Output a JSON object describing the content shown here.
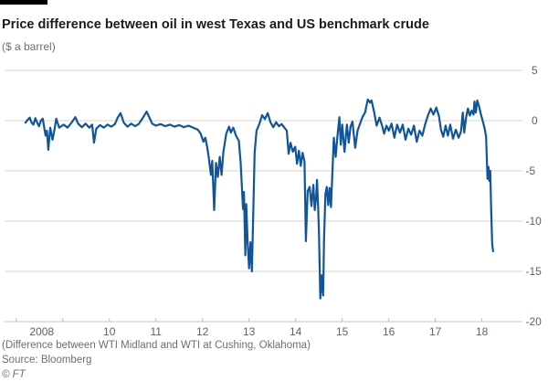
{
  "header": {
    "title": "Price difference between oil in west Texas and US benchmark crude",
    "subtitle": "($ a barrel)"
  },
  "footer": {
    "note": "(Difference between WTI Midland and WTI at Cushing, Oklahoma)",
    "source": "Source: Bloomberg",
    "copyright": "© FT"
  },
  "colors": {
    "line": "#10559B",
    "grid": "#d6d4cf",
    "axis": "#c2c0bb",
    "tick_label": "#66605c",
    "title_text": "#1b1b19",
    "top_rule": "#000000",
    "background": "#ffffff"
  },
  "chart_data": {
    "type": "line",
    "title": "Price difference between oil in west Texas and US benchmark crude",
    "subtitle": "($ a barrel)",
    "xlabel": "",
    "ylabel": "$ a barrel",
    "xlim": [
      2007.75,
      2018.87
    ],
    "ylim": [
      -20,
      5
    ],
    "grid": "horizontal",
    "legend": "none",
    "y_ticks": [
      5,
      0,
      -5,
      -10,
      -15,
      -20
    ],
    "x_ticks": [
      {
        "year": 2008,
        "label": "2008"
      },
      {
        "year": 2009,
        "label": ""
      },
      {
        "year": 2010,
        "label": "10"
      },
      {
        "year": 2011,
        "label": "11"
      },
      {
        "year": 2012,
        "label": "12"
      },
      {
        "year": 2013,
        "label": "13"
      },
      {
        "year": 2014,
        "label": "14"
      },
      {
        "year": 2015,
        "label": "15"
      },
      {
        "year": 2016,
        "label": "16"
      },
      {
        "year": 2017,
        "label": "17"
      },
      {
        "year": 2018,
        "label": "18"
      }
    ],
    "series": [
      {
        "name": "WTI Midland minus WTI Cushing spread",
        "points": [
          [
            2008.2,
            -0.2
          ],
          [
            2008.25,
            0.1
          ],
          [
            2008.29,
            0.3
          ],
          [
            2008.33,
            -0.2
          ],
          [
            2008.37,
            -0.4
          ],
          [
            2008.41,
            0.25
          ],
          [
            2008.45,
            -0.2
          ],
          [
            2008.49,
            -0.55
          ],
          [
            2008.53,
            0.0
          ],
          [
            2008.57,
            0.2
          ],
          [
            2008.63,
            -1.5
          ],
          [
            2008.66,
            -1.0
          ],
          [
            2008.69,
            -2.9
          ],
          [
            2008.73,
            -0.7
          ],
          [
            2008.78,
            -1.9
          ],
          [
            2008.82,
            -0.9
          ],
          [
            2008.86,
            0.2
          ],
          [
            2008.92,
            -0.7
          ],
          [
            2009.02,
            -0.4
          ],
          [
            2009.1,
            -0.7
          ],
          [
            2009.18,
            -0.25
          ],
          [
            2009.27,
            0.35
          ],
          [
            2009.33,
            -0.3
          ],
          [
            2009.41,
            -0.65
          ],
          [
            2009.49,
            -0.3
          ],
          [
            2009.57,
            -0.7
          ],
          [
            2009.63,
            -0.4
          ],
          [
            2009.67,
            -2.2
          ],
          [
            2009.72,
            -0.8
          ],
          [
            2009.8,
            -0.45
          ],
          [
            2009.88,
            -0.7
          ],
          [
            2009.96,
            -0.4
          ],
          [
            2010.04,
            -0.6
          ],
          [
            2010.12,
            -0.35
          ],
          [
            2010.18,
            0.3
          ],
          [
            2010.24,
            0.75
          ],
          [
            2010.31,
            -0.2
          ],
          [
            2010.39,
            -0.6
          ],
          [
            2010.47,
            -0.3
          ],
          [
            2010.55,
            -0.55
          ],
          [
            2010.63,
            -0.35
          ],
          [
            2010.71,
            0.2
          ],
          [
            2010.8,
            0.9
          ],
          [
            2010.86,
            0.3
          ],
          [
            2010.92,
            -0.3
          ],
          [
            2011.0,
            -0.5
          ],
          [
            2011.1,
            -0.35
          ],
          [
            2011.2,
            -0.55
          ],
          [
            2011.3,
            -0.4
          ],
          [
            2011.4,
            -0.6
          ],
          [
            2011.5,
            -0.45
          ],
          [
            2011.6,
            -0.65
          ],
          [
            2011.7,
            -0.5
          ],
          [
            2011.8,
            -0.7
          ],
          [
            2011.9,
            -0.9
          ],
          [
            2011.96,
            -1.3
          ],
          [
            2012.02,
            -2.1
          ],
          [
            2012.06,
            -1.7
          ],
          [
            2012.1,
            -2.6
          ],
          [
            2012.14,
            -3.8
          ],
          [
            2012.18,
            -5.4
          ],
          [
            2012.21,
            -4.0
          ],
          [
            2012.25,
            -8.9
          ],
          [
            2012.29,
            -4.2
          ],
          [
            2012.33,
            -5.6
          ],
          [
            2012.37,
            -3.6
          ],
          [
            2012.41,
            -5.4
          ],
          [
            2012.45,
            -3.1
          ],
          [
            2012.51,
            -1.3
          ],
          [
            2012.57,
            -0.6
          ],
          [
            2012.61,
            -1.2
          ],
          [
            2012.66,
            -0.7
          ],
          [
            2012.72,
            -1.5
          ],
          [
            2012.78,
            -2.0
          ],
          [
            2012.82,
            -4.2
          ],
          [
            2012.85,
            -6.9
          ],
          [
            2012.87,
            -8.8
          ],
          [
            2012.89,
            -7.1
          ],
          [
            2012.92,
            -13.4
          ],
          [
            2012.94,
            -8.3
          ],
          [
            2012.97,
            -12.2
          ],
          [
            2013.0,
            -14.7
          ],
          [
            2013.03,
            -12.1
          ],
          [
            2013.06,
            -15.0
          ],
          [
            2013.09,
            -9.2
          ],
          [
            2013.12,
            -3.2
          ],
          [
            2013.16,
            -1.0
          ],
          [
            2013.22,
            -0.35
          ],
          [
            2013.28,
            0.55
          ],
          [
            2013.34,
            0.15
          ],
          [
            2013.4,
            0.75
          ],
          [
            2013.46,
            -0.15
          ],
          [
            2013.52,
            -0.65
          ],
          [
            2013.58,
            -0.15
          ],
          [
            2013.64,
            -0.55
          ],
          [
            2013.7,
            -0.35
          ],
          [
            2013.76,
            -0.7
          ],
          [
            2013.81,
            -1.0
          ],
          [
            2013.85,
            -3.3
          ],
          [
            2013.89,
            -2.2
          ],
          [
            2013.94,
            -3.1
          ],
          [
            2013.99,
            -2.6
          ],
          [
            2014.03,
            -4.3
          ],
          [
            2014.07,
            -3.0
          ],
          [
            2014.11,
            -4.5
          ],
          [
            2014.15,
            -3.2
          ],
          [
            2014.19,
            -4.1
          ],
          [
            2014.22,
            -12.0
          ],
          [
            2014.26,
            -7.0
          ],
          [
            2014.3,
            -6.6
          ],
          [
            2014.34,
            -8.5
          ],
          [
            2014.38,
            -6.4
          ],
          [
            2014.41,
            -8.9
          ],
          [
            2014.44,
            -7.6
          ],
          [
            2014.46,
            -5.9
          ],
          [
            2014.48,
            -8.3
          ],
          [
            2014.5,
            -11.0
          ],
          [
            2014.53,
            -17.7
          ],
          [
            2014.56,
            -15.4
          ],
          [
            2014.59,
            -17.4
          ],
          [
            2014.61,
            -11.8
          ],
          [
            2014.64,
            -7.3
          ],
          [
            2014.67,
            -6.6
          ],
          [
            2014.7,
            -8.4
          ],
          [
            2014.73,
            -6.7
          ],
          [
            2014.76,
            -8.6
          ],
          [
            2014.82,
            -1.7
          ],
          [
            2014.86,
            -3.6
          ],
          [
            2014.9,
            -1.4
          ],
          [
            2014.94,
            0.35
          ],
          [
            2014.97,
            -2.4
          ],
          [
            2015.0,
            -0.4
          ],
          [
            2015.05,
            -3.1
          ],
          [
            2015.1,
            -0.4
          ],
          [
            2015.14,
            -2.2
          ],
          [
            2015.18,
            -0.6
          ],
          [
            2015.22,
            -0.1
          ],
          [
            2015.28,
            -2.7
          ],
          [
            2015.33,
            -1.0
          ],
          [
            2015.39,
            -0.2
          ],
          [
            2015.44,
            0.4
          ],
          [
            2015.49,
            0.8
          ],
          [
            2015.55,
            2.1
          ],
          [
            2015.6,
            1.8
          ],
          [
            2015.63,
            2.0
          ],
          [
            2015.68,
            1.0
          ],
          [
            2015.74,
            -0.5
          ],
          [
            2015.8,
            0.3
          ],
          [
            2015.85,
            -0.4
          ],
          [
            2015.9,
            -1.3
          ],
          [
            2015.95,
            -0.5
          ],
          [
            2016.0,
            -1.0
          ],
          [
            2016.06,
            -0.3
          ],
          [
            2016.12,
            -1.7
          ],
          [
            2016.18,
            -0.4
          ],
          [
            2016.24,
            -1.2
          ],
          [
            2016.3,
            -0.4
          ],
          [
            2016.36,
            -1.9
          ],
          [
            2016.42,
            -0.8
          ],
          [
            2016.48,
            -1.4
          ],
          [
            2016.54,
            -0.5
          ],
          [
            2016.6,
            -2.1
          ],
          [
            2016.66,
            -1.0
          ],
          [
            2016.72,
            -1.5
          ],
          [
            2016.78,
            -0.4
          ],
          [
            2016.84,
            0.5
          ],
          [
            2016.9,
            1.2
          ],
          [
            2016.96,
            0.6
          ],
          [
            2017.02,
            1.3
          ],
          [
            2017.08,
            0.4
          ],
          [
            2017.12,
            -0.9
          ],
          [
            2017.17,
            -1.6
          ],
          [
            2017.22,
            -0.5
          ],
          [
            2017.27,
            -1.5
          ],
          [
            2017.32,
            -0.4
          ],
          [
            2017.38,
            -1.8
          ],
          [
            2017.44,
            -0.9
          ],
          [
            2017.5,
            -1.7
          ],
          [
            2017.55,
            -1.1
          ],
          [
            2017.59,
            0.8
          ],
          [
            2017.62,
            -1.2
          ],
          [
            2017.66,
            0.3
          ],
          [
            2017.7,
            1.2
          ],
          [
            2017.74,
            0.5
          ],
          [
            2017.78,
            1.0
          ],
          [
            2017.82,
            0.6
          ],
          [
            2017.84,
            1.9
          ],
          [
            2017.87,
            0.8
          ],
          [
            2017.9,
            2.0
          ],
          [
            2017.94,
            1.4
          ],
          [
            2017.98,
            0.6
          ],
          [
            2018.02,
            -0.1
          ],
          [
            2018.06,
            -0.8
          ],
          [
            2018.09,
            -1.6
          ],
          [
            2018.12,
            -5.8
          ],
          [
            2018.14,
            -4.6
          ],
          [
            2018.16,
            -6.0
          ],
          [
            2018.18,
            -5.0
          ],
          [
            2018.2,
            -9.0
          ],
          [
            2018.22,
            -12.3
          ],
          [
            2018.24,
            -13.0
          ]
        ]
      }
    ]
  }
}
